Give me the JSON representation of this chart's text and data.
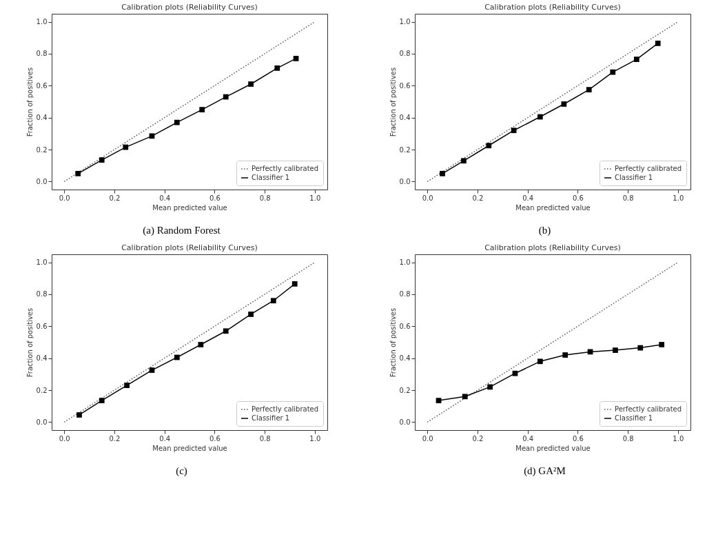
{
  "chart_data": [
    {
      "type": "line",
      "title": "Calibration plots (Reliability Curves)",
      "xlabel": "Mean predicted value",
      "ylabel": "Fraction of positives",
      "annotations": [
        "(a) Random Forest"
      ],
      "xlim": [
        -0.05,
        1.05
      ],
      "ylim": [
        -0.05,
        1.05
      ],
      "xticks": [
        {
          "value": 0,
          "label": "0.0"
        },
        {
          "value": 0.2,
          "label": "0.2"
        },
        {
          "value": 0.4,
          "label": "0.4"
        },
        {
          "value": 0.6,
          "label": "0.6"
        },
        {
          "value": 0.8,
          "label": "0.8"
        },
        {
          "value": 1,
          "label": "1.0"
        }
      ],
      "yticks": [
        {
          "value": 0,
          "label": "0.0"
        },
        {
          "value": 0.2,
          "label": "0.2"
        },
        {
          "value": 0.4,
          "label": "0.4"
        },
        {
          "value": 0.6,
          "label": "0.6"
        },
        {
          "value": 0.8,
          "label": "0.8"
        },
        {
          "value": 1,
          "label": "1.0"
        }
      ],
      "legend": "bottom right",
      "grid": false,
      "series": [
        {
          "name": "Perfectly calibrated",
          "color": "#555555",
          "line_style": "dotted",
          "marker": "none",
          "x": [
            0,
            1
          ],
          "values": [
            0,
            1
          ]
        },
        {
          "name": "Classifier 1",
          "color": "#000000",
          "line_style": "solid",
          "marker": "square",
          "x": [
            0.055,
            0.15,
            0.245,
            0.35,
            0.45,
            0.55,
            0.645,
            0.745,
            0.85,
            0.925
          ],
          "values": [
            0.05,
            0.135,
            0.215,
            0.285,
            0.37,
            0.45,
            0.53,
            0.61,
            0.71,
            0.77
          ]
        }
      ]
    },
    {
      "type": "line",
      "title": "Calibration plots (Reliability Curves)",
      "xlabel": "Mean predicted value",
      "ylabel": "Fraction of positives",
      "annotations": [
        "(b)"
      ],
      "xlim": [
        -0.05,
        1.05
      ],
      "ylim": [
        -0.05,
        1.05
      ],
      "xticks": [
        {
          "value": 0,
          "label": "0.0"
        },
        {
          "value": 0.2,
          "label": "0.2"
        },
        {
          "value": 0.4,
          "label": "0.4"
        },
        {
          "value": 0.6,
          "label": "0.6"
        },
        {
          "value": 0.8,
          "label": "0.8"
        },
        {
          "value": 1,
          "label": "1.0"
        }
      ],
      "yticks": [
        {
          "value": 0,
          "label": "0.0"
        },
        {
          "value": 0.2,
          "label": "0.2"
        },
        {
          "value": 0.4,
          "label": "0.4"
        },
        {
          "value": 0.6,
          "label": "0.6"
        },
        {
          "value": 0.8,
          "label": "0.8"
        },
        {
          "value": 1,
          "label": "1.0"
        }
      ],
      "legend": "bottom right",
      "grid": false,
      "series": [
        {
          "name": "Perfectly calibrated",
          "color": "#555555",
          "line_style": "dotted",
          "marker": "none",
          "x": [
            0,
            1
          ],
          "values": [
            0,
            1
          ]
        },
        {
          "name": "Classifier 1",
          "color": "#000000",
          "line_style": "solid",
          "marker": "square",
          "x": [
            0.06,
            0.145,
            0.245,
            0.345,
            0.45,
            0.545,
            0.645,
            0.74,
            0.835,
            0.92
          ],
          "values": [
            0.05,
            0.13,
            0.225,
            0.32,
            0.405,
            0.485,
            0.575,
            0.685,
            0.765,
            0.865
          ]
        }
      ]
    },
    {
      "type": "line",
      "title": "Calibration plots (Reliability Curves)",
      "xlabel": "Mean predicted value",
      "ylabel": "Fraction of positives",
      "annotations": [
        "(c)"
      ],
      "xlim": [
        -0.05,
        1.05
      ],
      "ylim": [
        -0.05,
        1.05
      ],
      "xticks": [
        {
          "value": 0,
          "label": "0.0"
        },
        {
          "value": 0.2,
          "label": "0.2"
        },
        {
          "value": 0.4,
          "label": "0.4"
        },
        {
          "value": 0.6,
          "label": "0.6"
        },
        {
          "value": 0.8,
          "label": "0.8"
        },
        {
          "value": 1,
          "label": "1.0"
        }
      ],
      "yticks": [
        {
          "value": 0,
          "label": "0.0"
        },
        {
          "value": 0.2,
          "label": "0.2"
        },
        {
          "value": 0.4,
          "label": "0.4"
        },
        {
          "value": 0.6,
          "label": "0.6"
        },
        {
          "value": 0.8,
          "label": "0.8"
        },
        {
          "value": 1,
          "label": "1.0"
        }
      ],
      "legend": "bottom right",
      "grid": false,
      "series": [
        {
          "name": "Perfectly calibrated",
          "color": "#555555",
          "line_style": "dotted",
          "marker": "none",
          "x": [
            0,
            1
          ],
          "values": [
            0,
            1
          ]
        },
        {
          "name": "Classifier 1",
          "color": "#000000",
          "line_style": "solid",
          "marker": "square",
          "x": [
            0.06,
            0.15,
            0.25,
            0.35,
            0.45,
            0.545,
            0.645,
            0.745,
            0.835,
            0.92
          ],
          "values": [
            0.045,
            0.135,
            0.23,
            0.325,
            0.405,
            0.485,
            0.57,
            0.675,
            0.76,
            0.865
          ]
        }
      ]
    },
    {
      "type": "line",
      "title": "Calibration plots (Reliability Curves)",
      "xlabel": "Mean predicted value",
      "ylabel": "Fraction of positives",
      "annotations": [
        "(d) GA²M"
      ],
      "xlim": [
        -0.05,
        1.05
      ],
      "ylim": [
        -0.05,
        1.05
      ],
      "xticks": [
        {
          "value": 0,
          "label": "0.0"
        },
        {
          "value": 0.2,
          "label": "0.2"
        },
        {
          "value": 0.4,
          "label": "0.4"
        },
        {
          "value": 0.6,
          "label": "0.6"
        },
        {
          "value": 0.8,
          "label": "0.8"
        },
        {
          "value": 1,
          "label": "1.0"
        }
      ],
      "yticks": [
        {
          "value": 0,
          "label": "0.0"
        },
        {
          "value": 0.2,
          "label": "0.2"
        },
        {
          "value": 0.4,
          "label": "0.4"
        },
        {
          "value": 0.6,
          "label": "0.6"
        },
        {
          "value": 0.8,
          "label": "0.8"
        },
        {
          "value": 1,
          "label": "1.0"
        }
      ],
      "legend": "bottom right",
      "grid": false,
      "series": [
        {
          "name": "Perfectly calibrated",
          "color": "#555555",
          "line_style": "dotted",
          "marker": "none",
          "x": [
            0,
            1
          ],
          "values": [
            0,
            1
          ]
        },
        {
          "name": "Classifier 1",
          "color": "#000000",
          "line_style": "solid",
          "marker": "square",
          "x": [
            0.045,
            0.15,
            0.25,
            0.35,
            0.45,
            0.55,
            0.65,
            0.75,
            0.85,
            0.935
          ],
          "values": [
            0.135,
            0.16,
            0.22,
            0.305,
            0.38,
            0.42,
            0.44,
            0.45,
            0.465,
            0.485
          ]
        }
      ]
    }
  ]
}
